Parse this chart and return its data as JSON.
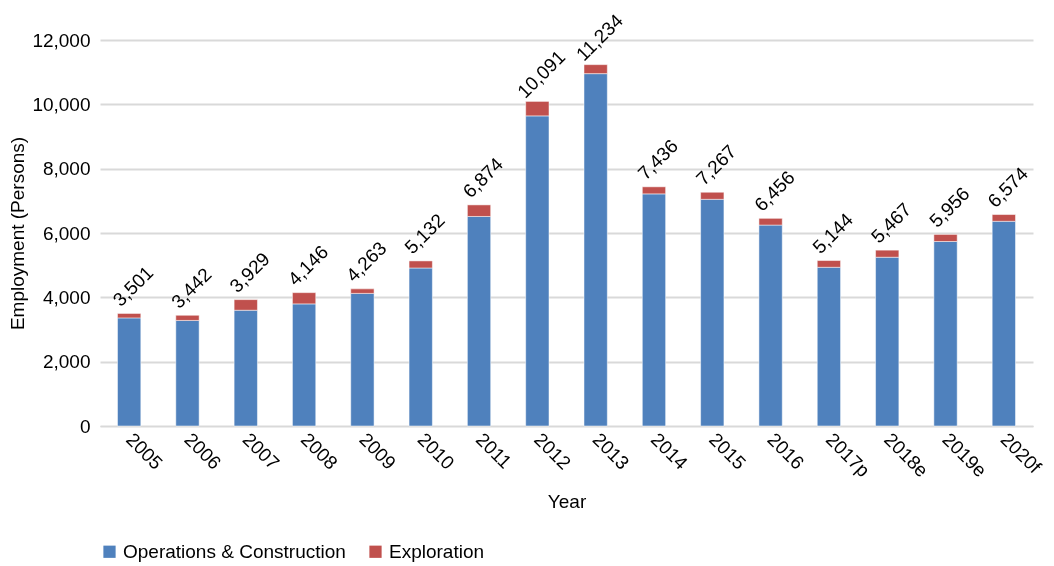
{
  "chart_data": {
    "type": "bar",
    "stacked": true,
    "xlabel": "Year",
    "ylabel": "Employment (Persons)",
    "categories": [
      "2005",
      "2006",
      "2007",
      "2008",
      "2009",
      "2010",
      "2011",
      "2012",
      "2013",
      "2014",
      "2015",
      "2016",
      "2017p",
      "2018e",
      "2019e",
      "2020f"
    ],
    "series": [
      {
        "name": "Operations & Construction",
        "color": "#4f81bd",
        "values": [
          3361,
          3282,
          3599,
          3796,
          4123,
          4912,
          6514,
          9641,
          10954,
          7216,
          7047,
          6246,
          4934,
          5247,
          5736,
          6364
        ]
      },
      {
        "name": "Exploration",
        "color": "#c0504d",
        "values": [
          140,
          160,
          330,
          350,
          140,
          220,
          360,
          450,
          280,
          220,
          220,
          210,
          210,
          220,
          220,
          210
        ]
      }
    ],
    "totals": [
      "3,501",
      "3,442",
      "3,929",
      "4,146",
      "4,263",
      "5,132",
      "6,874",
      "10,091",
      "11,234",
      "7,436",
      "7,267",
      "6,456",
      "5,144",
      "5,467",
      "5,956",
      "6,574"
    ],
    "ylim": [
      0,
      12000
    ],
    "yticks": [
      0,
      {
        "value": 2000,
        "label": "2,000"
      },
      {
        "value": 4000,
        "label": "4,000"
      },
      {
        "value": 6000,
        "label": "6,000"
      },
      {
        "value": 8000,
        "label": "8,000"
      },
      {
        "value": 10000,
        "label": "10,000"
      },
      {
        "value": 12000,
        "label": "12,000"
      }
    ],
    "grid": "y",
    "legend": "bottom"
  }
}
